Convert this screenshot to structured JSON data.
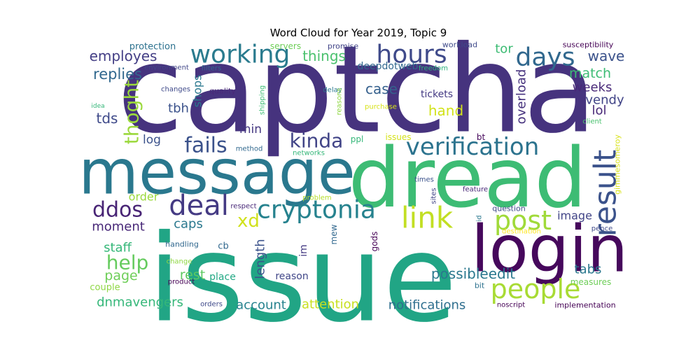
{
  "chart_data": {
    "type": "wordcloud",
    "title": "Word Cloud for Year 2019, Topic 9",
    "words": [
      {
        "text": "captcha",
        "color": "#46337e"
      },
      {
        "text": "issue",
        "color": "#21a585"
      },
      {
        "text": "message",
        "color": "#2a788e"
      },
      {
        "text": "dread",
        "color": "#3dbc74"
      },
      {
        "text": "login",
        "color": "#46085c"
      },
      {
        "text": "working",
        "color": "#2a7b8e"
      },
      {
        "text": "hours",
        "color": "#3f4a8a"
      },
      {
        "text": "days",
        "color": "#31688e"
      },
      {
        "text": "result",
        "color": "#3b528b"
      },
      {
        "text": "verification",
        "color": "#2c738e"
      },
      {
        "text": "thoght",
        "color": "#9bd93c"
      },
      {
        "text": "fails",
        "color": "#3b528b"
      },
      {
        "text": "kinda",
        "color": "#414487"
      },
      {
        "text": "cryptonia",
        "color": "#26828e"
      },
      {
        "text": "deal",
        "color": "#443a83"
      },
      {
        "text": "ddos",
        "color": "#482475"
      },
      {
        "text": "link",
        "color": "#c2df23"
      },
      {
        "text": "post",
        "color": "#a0da39"
      },
      {
        "text": "people",
        "color": "#a8db34"
      },
      {
        "text": "xd",
        "color": "#d0e11c"
      },
      {
        "text": "help",
        "color": "#65cb5e"
      },
      {
        "text": "page",
        "color": "#6ece58"
      },
      {
        "text": "rest",
        "color": "#5ec962"
      },
      {
        "text": "staff",
        "color": "#35b779"
      },
      {
        "text": "moment",
        "color": "#482878"
      },
      {
        "text": "order",
        "color": "#9bd93c"
      },
      {
        "text": "log",
        "color": "#3b528b"
      },
      {
        "text": "caps",
        "color": "#2a788e"
      },
      {
        "text": "min",
        "color": "#453781"
      },
      {
        "text": "tbh",
        "color": "#3b528b"
      },
      {
        "text": "tds",
        "color": "#3e4989"
      },
      {
        "text": "replies",
        "color": "#31688e"
      },
      {
        "text": "employes",
        "color": "#433e85"
      },
      {
        "text": "protection",
        "color": "#2c718e"
      },
      {
        "text": "environment",
        "color": "#404688"
      },
      {
        "text": "changes",
        "color": "#3e4989"
      },
      {
        "text": "idea",
        "color": "#35b779"
      },
      {
        "text": "quality",
        "color": "#482878"
      },
      {
        "text": "filters",
        "color": "#31688e"
      },
      {
        "text": "shops",
        "color": "#2a788e"
      },
      {
        "text": "servers",
        "color": "#6ece58"
      },
      {
        "text": "promise",
        "color": "#414487"
      },
      {
        "text": "things",
        "color": "#4ac16d"
      },
      {
        "text": "deepdotweb",
        "color": "#31688e"
      },
      {
        "text": "freedom",
        "color": "#2db27d"
      },
      {
        "text": "workload",
        "color": "#3e4989"
      },
      {
        "text": "tor",
        "color": "#3dbc74"
      },
      {
        "text": "susceptibility",
        "color": "#440154"
      },
      {
        "text": "wave",
        "color": "#3b528b"
      },
      {
        "text": "match",
        "color": "#3dbc74"
      },
      {
        "text": "weeks",
        "color": "#482878"
      },
      {
        "text": "vendy",
        "color": "#414487"
      },
      {
        "text": "lol",
        "color": "#482878"
      },
      {
        "text": "client",
        "color": "#48c16e"
      },
      {
        "text": "overload",
        "color": "#46327e"
      },
      {
        "text": "case",
        "color": "#35608d"
      },
      {
        "text": "delay",
        "color": "#2a788e"
      },
      {
        "text": "shipping",
        "color": "#3dbc74"
      },
      {
        "text": "reasons",
        "color": "#8fd744"
      },
      {
        "text": "purchase",
        "color": "#d8e219"
      },
      {
        "text": "tickets",
        "color": "#443a83"
      },
      {
        "text": "hand",
        "color": "#d2e21b"
      },
      {
        "text": "gimmesomeroy",
        "color": "#d8e219"
      },
      {
        "text": "bt",
        "color": "#46085c"
      },
      {
        "text": "issues",
        "color": "#d5e21a"
      },
      {
        "text": "ppl",
        "color": "#35b779"
      },
      {
        "text": "method",
        "color": "#31688e"
      },
      {
        "text": "networks",
        "color": "#35b779"
      },
      {
        "text": "times",
        "color": "#3b528b"
      },
      {
        "text": "sites",
        "color": "#414487"
      },
      {
        "text": "feature",
        "color": "#482878"
      },
      {
        "text": "problem",
        "color": "#b5de2b"
      },
      {
        "text": "respect",
        "color": "#482878"
      },
      {
        "text": "question",
        "color": "#3e4989"
      },
      {
        "text": "image",
        "color": "#414487"
      },
      {
        "text": "destination",
        "color": "#fde725"
      },
      {
        "text": "pence",
        "color": "#3e4989"
      },
      {
        "text": "id",
        "color": "#2a788e"
      },
      {
        "text": "gods",
        "color": "#440154"
      },
      {
        "text": "mew",
        "color": "#31688e"
      },
      {
        "text": "im",
        "color": "#443a83"
      },
      {
        "text": "length",
        "color": "#3b528b"
      },
      {
        "text": "cb",
        "color": "#31688e"
      },
      {
        "text": "handling",
        "color": "#31688e"
      },
      {
        "text": "change",
        "color": "#8fd744"
      },
      {
        "text": "product",
        "color": "#440154"
      },
      {
        "text": "place",
        "color": "#22a884"
      },
      {
        "text": "reason",
        "color": "#404688"
      },
      {
        "text": "possibleedit",
        "color": "#2a788e"
      },
      {
        "text": "tabs",
        "color": "#2a788e"
      },
      {
        "text": "measures",
        "color": "#6ece58"
      },
      {
        "text": "bit",
        "color": "#2c718e"
      },
      {
        "text": "noscript",
        "color": "#440154"
      },
      {
        "text": "implementation",
        "color": "#440154"
      },
      {
        "text": "couple",
        "color": "#8fd744"
      },
      {
        "text": "dnmavengers",
        "color": "#35b779"
      },
      {
        "text": "orders",
        "color": "#3e4989"
      },
      {
        "text": "account",
        "color": "#26828e"
      },
      {
        "text": "attention",
        "color": "#c8e020"
      },
      {
        "text": "notifications",
        "color": "#2e6e8e"
      }
    ]
  }
}
